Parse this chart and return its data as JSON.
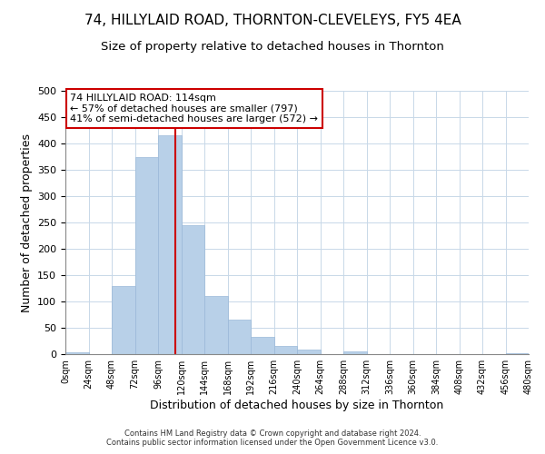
{
  "title1": "74, HILLYLAID ROAD, THORNTON-CLEVELEYS, FY5 4EA",
  "title2": "Size of property relative to detached houses in Thornton",
  "xlabel": "Distribution of detached houses by size in Thornton",
  "ylabel": "Number of detached properties",
  "bin_edges": [
    0,
    24,
    48,
    72,
    96,
    120,
    144,
    168,
    192,
    216,
    240,
    264,
    288,
    312,
    336,
    360,
    384,
    408,
    432,
    456,
    480
  ],
  "bar_heights": [
    4,
    0,
    130,
    375,
    415,
    245,
    110,
    65,
    33,
    15,
    8,
    0,
    5,
    0,
    0,
    0,
    0,
    0,
    0,
    1
  ],
  "bar_color": "#b8d0e8",
  "bar_edgecolor": "#9ab8d8",
  "vline_x": 114,
  "vline_color": "#cc0000",
  "ylim": [
    0,
    500
  ],
  "xlim": [
    0,
    480
  ],
  "annotation_title": "74 HILLYLAID ROAD: 114sqm",
  "annotation_line1": "← 57% of detached houses are smaller (797)",
  "annotation_line2": "41% of semi-detached houses are larger (572) →",
  "annotation_box_color": "#ffffff",
  "annotation_box_edgecolor": "#cc0000",
  "footer_line1": "Contains HM Land Registry data © Crown copyright and database right 2024.",
  "footer_line2": "Contains public sector information licensed under the Open Government Licence v3.0.",
  "background_color": "#ffffff",
  "grid_color": "#c8d8e8",
  "title1_fontsize": 11,
  "title2_fontsize": 9.5,
  "tick_labels": [
    "0sqm",
    "24sqm",
    "48sqm",
    "72sqm",
    "96sqm",
    "120sqm",
    "144sqm",
    "168sqm",
    "192sqm",
    "216sqm",
    "240sqm",
    "264sqm",
    "288sqm",
    "312sqm",
    "336sqm",
    "360sqm",
    "384sqm",
    "408sqm",
    "432sqm",
    "456sqm",
    "480sqm"
  ]
}
